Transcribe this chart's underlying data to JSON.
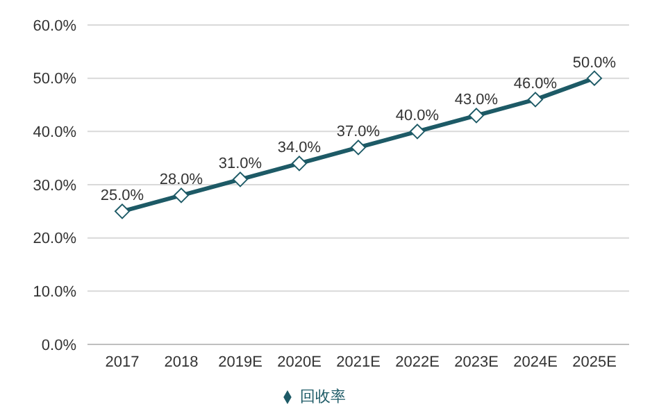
{
  "chart_data": {
    "type": "line",
    "categories": [
      "2017",
      "2018",
      "2019E",
      "2020E",
      "2021E",
      "2022E",
      "2023E",
      "2024E",
      "2025E"
    ],
    "series": [
      {
        "name": "回收率",
        "color": "#1d5a66",
        "values": [
          25,
          28,
          31,
          34,
          37,
          40,
          43,
          46,
          50
        ],
        "value_labels": [
          "25.0%",
          "28.0%",
          "31.0%",
          "34.0%",
          "37.0%",
          "40.0%",
          "43.0%",
          "46.0%",
          "50.0%"
        ]
      }
    ],
    "ylim": [
      0,
      60
    ],
    "yticks": [
      {
        "value": 0,
        "label": "0.0%"
      },
      {
        "value": 10,
        "label": "10.0%"
      },
      {
        "value": 20,
        "label": "20.0%"
      },
      {
        "value": 30,
        "label": "30.0%"
      },
      {
        "value": 40,
        "label": "40.0%"
      },
      {
        "value": 50,
        "label": "50.0%"
      },
      {
        "value": 60,
        "label": "60.0%"
      }
    ],
    "grid": "y",
    "legend": "bottom",
    "marker": "diamond",
    "line_style": "solid"
  }
}
